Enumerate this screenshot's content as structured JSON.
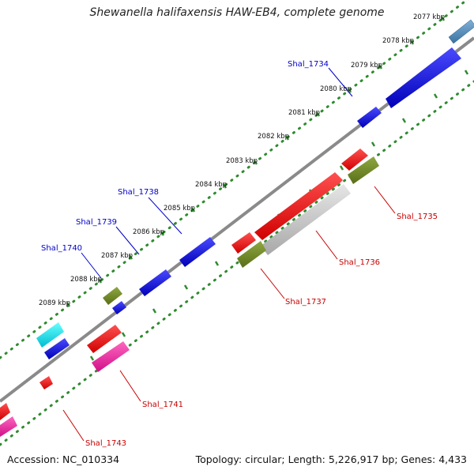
{
  "title": "Shewanella halifaxensis HAW-EB4, complete genome",
  "footer": {
    "accession": "Accession: NC_010334",
    "stats": "Topology: circular; Length: 5,226,917 bp; Genes: 4,433"
  },
  "colors": {
    "forward_label": "#0000c8",
    "reverse_label": "#c80000",
    "tick": "#2e8b2e",
    "backbone": "#808080"
  },
  "scale_ticks": [
    "2077 kbp",
    "2078 kbp",
    "2079 kbp",
    "2080 kbp",
    "2081 kbp",
    "2082 kbp",
    "2083 kbp",
    "2084 kbp",
    "2085 kbp",
    "2086 kbp",
    "2087 kbp",
    "2088 kbp",
    "2089 kbp"
  ],
  "gene_labels": {
    "shal_1734": "Shal_1734",
    "shal_1735": "Shal_1735",
    "shal_1736": "Shal_1736",
    "shal_1737": "Shal_1737",
    "shal_1738": "Shal_1738",
    "shal_1739": "Shal_1739",
    "shal_1740": "Shal_1740",
    "shal_1741": "Shal_1741",
    "shal_1743": "Shal_1743"
  }
}
